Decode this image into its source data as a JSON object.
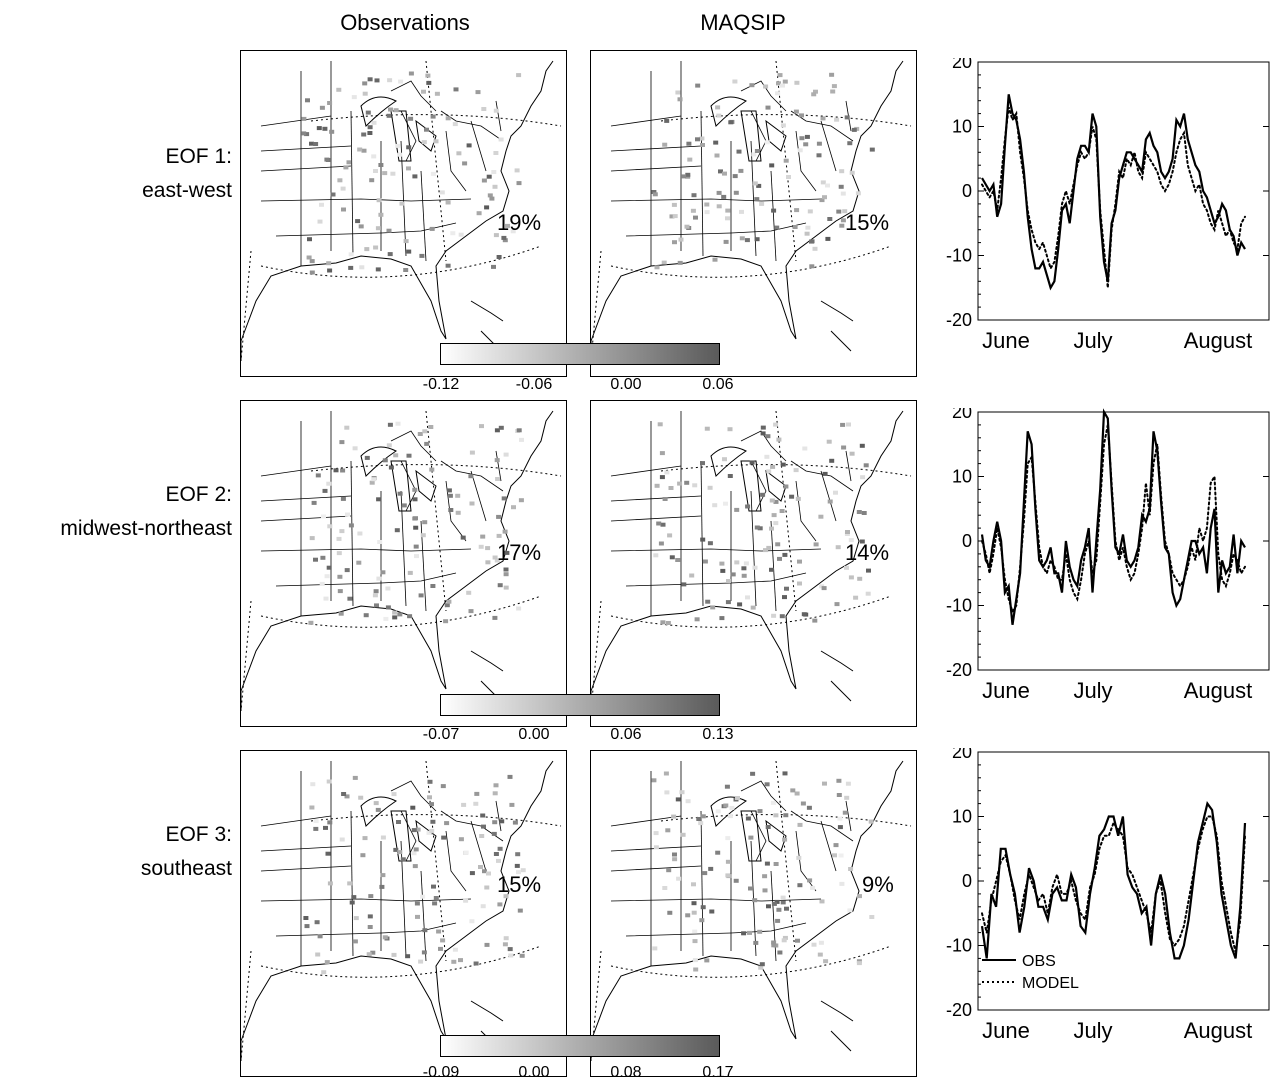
{
  "headers": {
    "observations": "Observations",
    "model": "MAQSIP"
  },
  "colors": {
    "colorbar_low": "#ffffff",
    "colorbar_high": "#5a5a5a",
    "obs_line": "#000000",
    "model_line": "#000000"
  },
  "rows": [
    {
      "label_line1": "EOF 1:",
      "label_line2": "east-west",
      "obs_pct": "19%",
      "model_pct": "15%",
      "colorbar_ticks": [
        "-0.12",
        "-0.06",
        "0.00",
        "0.06"
      ]
    },
    {
      "label_line1": "EOF 2:",
      "label_line2": "midwest-northeast",
      "obs_pct": "17%",
      "model_pct": "14%",
      "colorbar_ticks": [
        "-0.07",
        "0.00",
        "0.06",
        "0.13"
      ]
    },
    {
      "label_line1": "EOF 3:",
      "label_line2": "southeast",
      "obs_pct": "15%",
      "model_pct": "9%",
      "colorbar_ticks": [
        "-0.09",
        "0.00",
        "0.08",
        "0.17"
      ]
    }
  ],
  "chart_data": [
    {
      "type": "line",
      "x_tick_labels": [
        "June",
        "July",
        "August"
      ],
      "y_ticks": [
        "20",
        "10",
        "0",
        "-10",
        "-20"
      ],
      "ylim": [
        -20,
        20
      ],
      "series": [
        {
          "name": "OBS",
          "style": "solid",
          "values": [
            2,
            1,
            0,
            1,
            -4,
            -2,
            7,
            15,
            12,
            11,
            8,
            3,
            -4,
            -9,
            -12,
            -12,
            -11,
            -13,
            -15,
            -14,
            -9,
            -3,
            -2,
            -5,
            0,
            5,
            7,
            7,
            6,
            12,
            10,
            -4,
            -11,
            -14,
            -5,
            -3,
            2,
            4,
            6,
            6,
            5,
            4,
            3,
            8,
            9,
            7,
            6,
            3,
            2,
            3,
            5,
            11,
            10,
            12,
            8,
            6,
            4,
            3,
            0,
            -1,
            -3,
            -5,
            -4,
            -2,
            -3,
            -6,
            -7,
            -10,
            -8,
            -9
          ]
        },
        {
          "name": "MODEL",
          "style": "dotted",
          "values": [
            1,
            0,
            -1,
            0,
            -3,
            2,
            8,
            13,
            11,
            12,
            6,
            2,
            -3,
            -6,
            -8,
            -9,
            -8,
            -10,
            -12,
            -11,
            -7,
            -2,
            0,
            -2,
            1,
            4,
            6,
            5,
            6,
            10,
            8,
            -3,
            -9,
            -15,
            -6,
            -2,
            3,
            2,
            5,
            4,
            6,
            3,
            2,
            6,
            5,
            4,
            3,
            1,
            0,
            1,
            3,
            6,
            8,
            9,
            4,
            2,
            0,
            1,
            -2,
            -3,
            -5,
            -6,
            -3,
            -5,
            -7,
            -6,
            -8,
            -9,
            -5,
            -4
          ]
        }
      ]
    },
    {
      "type": "line",
      "x_tick_labels": [
        "June",
        "July",
        "August"
      ],
      "y_ticks": [
        "20",
        "10",
        "0",
        "-10",
        "-20"
      ],
      "ylim": [
        -20,
        20
      ],
      "series": [
        {
          "name": "OBS",
          "style": "solid",
          "values": [
            1,
            -3,
            -4,
            0,
            3,
            0,
            -8,
            -7,
            -13,
            -9,
            -5,
            6,
            17,
            15,
            5,
            -3,
            -4,
            -3,
            -1,
            -5,
            -5,
            -8,
            0,
            -4,
            -6,
            -7,
            -3,
            -1,
            2,
            -8,
            0,
            8,
            20,
            19,
            8,
            -1,
            -2,
            1,
            -3,
            -4,
            -3,
            -1,
            4,
            3,
            5,
            17,
            14,
            6,
            -1,
            -2,
            -8,
            -10,
            -9,
            -6,
            -3,
            0,
            0,
            -2,
            -1,
            -5,
            2,
            5,
            -8,
            -3,
            -5,
            -4,
            1,
            -5,
            0,
            -1
          ]
        },
        {
          "name": "MODEL",
          "style": "dotted",
          "values": [
            0,
            -2,
            -5,
            -2,
            2,
            -1,
            -6,
            -9,
            -11,
            -10,
            -4,
            3,
            12,
            13,
            6,
            -1,
            -4,
            -5,
            -3,
            -4,
            -6,
            -6,
            -2,
            -6,
            -8,
            -9,
            -6,
            -2,
            0,
            -5,
            -3,
            6,
            15,
            18,
            9,
            0,
            -3,
            -1,
            -4,
            -6,
            -5,
            -2,
            2,
            9,
            4,
            12,
            15,
            7,
            0,
            -2,
            -5,
            -6,
            -7,
            -6,
            -4,
            -1,
            -3,
            2,
            0,
            2,
            9,
            10,
            -2,
            -6,
            -7,
            -5,
            -2,
            -3,
            -5,
            -4
          ]
        }
      ]
    },
    {
      "type": "line",
      "x_tick_labels": [
        "June",
        "July",
        "August"
      ],
      "y_ticks": [
        "20",
        "10",
        "0",
        "-10",
        "-20"
      ],
      "ylim": [
        -20,
        20
      ],
      "legend_position": "bottom-left",
      "series": [
        {
          "name": "OBS",
          "style": "solid",
          "values": [
            -7,
            -12,
            -2,
            -4,
            5,
            5,
            1,
            -2,
            -8,
            -4,
            2,
            0,
            -4,
            -4,
            -6,
            -2,
            -1,
            -3,
            -3,
            1,
            -1,
            -7,
            -8,
            -2,
            2,
            7,
            8,
            10,
            10,
            7,
            10,
            1,
            -1,
            -2,
            -5,
            -4,
            -10,
            -2,
            1,
            -2,
            -8,
            -12,
            -12,
            -10,
            -6,
            0,
            6,
            9,
            12,
            11,
            6,
            -2,
            -6,
            -10,
            -12,
            -4,
            9
          ]
        },
        {
          "name": "MODEL",
          "style": "dotted",
          "values": [
            -5,
            -8,
            -3,
            0,
            3,
            4,
            1,
            -3,
            -6,
            -2,
            1,
            -1,
            -3,
            -2,
            -5,
            -1,
            1,
            -2,
            -2,
            0,
            -3,
            -5,
            -6,
            -1,
            1,
            5,
            7,
            7,
            9,
            8,
            7,
            2,
            1,
            -1,
            -3,
            -5,
            -8,
            -2,
            0,
            -5,
            -9,
            -10,
            -9,
            -7,
            -3,
            1,
            5,
            8,
            10,
            10,
            7,
            0,
            -4,
            -8,
            -11,
            -6,
            7
          ]
        }
      ]
    }
  ]
}
